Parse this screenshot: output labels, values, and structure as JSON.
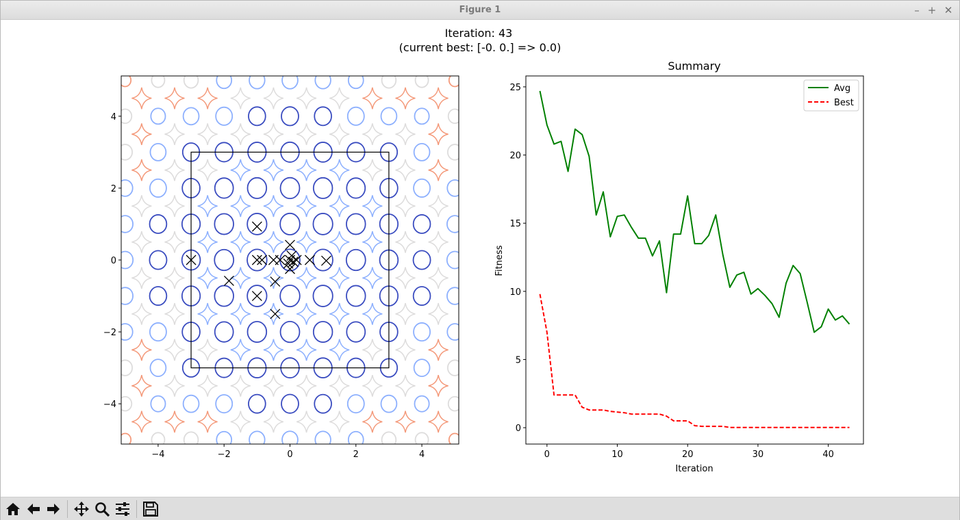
{
  "window": {
    "title": "Figure 1"
  },
  "figure": {
    "suptitle_line1": "Iteration: 43",
    "suptitle_line2": "(current best: [-0.  0.] => 0.0)"
  },
  "left_plot": {
    "x_ticks": [
      "−4",
      "−2",
      "0",
      "2",
      "4"
    ],
    "y_ticks": [
      "4",
      "2",
      "0",
      "−2",
      "−4"
    ],
    "x_tick_values": [
      -4,
      -2,
      0,
      2,
      4
    ],
    "y_tick_values": [
      4,
      2,
      0,
      -2,
      -4
    ],
    "xlim": [
      -5.12,
      5.12
    ],
    "ylim": [
      -5.12,
      5.12
    ],
    "bounds_box": [
      -3,
      3
    ],
    "points": [
      [
        -1.0,
        0.93
      ],
      [
        0.0,
        0.42
      ],
      [
        -3.0,
        0.0
      ],
      [
        -1.0,
        0.0
      ],
      [
        -0.85,
        0.0
      ],
      [
        -0.5,
        0.0
      ],
      [
        -0.3,
        0.0
      ],
      [
        0.0,
        0.0
      ],
      [
        0.05,
        0.12
      ],
      [
        -0.05,
        -0.1
      ],
      [
        0.1,
        -0.05
      ],
      [
        0.0,
        -0.25
      ],
      [
        0.2,
        0.0
      ],
      [
        0.6,
        0.0
      ],
      [
        1.1,
        -0.02
      ],
      [
        -1.85,
        -0.58
      ],
      [
        -0.45,
        -0.6
      ],
      [
        -1.0,
        -1.0
      ],
      [
        -0.45,
        -1.5
      ]
    ],
    "colors": {
      "level_dark_blue": "#3a4cc0",
      "level_blue": "#8db0fe",
      "level_gray": "#dddcdc",
      "level_orange": "#f49a7b",
      "level_red": "#b40426"
    }
  },
  "chart_data": {
    "type": "line",
    "title": "Summary",
    "xlabel": "Iteration",
    "ylabel": "Fitness",
    "xlim": [
      -3,
      45
    ],
    "ylim": [
      -1.2,
      25.8
    ],
    "x_ticks": [
      0,
      10,
      20,
      30,
      40
    ],
    "y_ticks": [
      0,
      5,
      10,
      15,
      20,
      25
    ],
    "legend": "top-right",
    "series": [
      {
        "name": "Avg",
        "color": "#008000",
        "style": "solid",
        "x": [
          -1,
          0,
          1,
          2,
          3,
          4,
          5,
          6,
          7,
          8,
          9,
          10,
          11,
          12,
          13,
          14,
          15,
          16,
          17,
          18,
          19,
          20,
          21,
          22,
          23,
          24,
          25,
          26,
          27,
          28,
          29,
          30,
          31,
          32,
          33,
          34,
          35,
          36,
          37,
          38,
          39,
          40,
          41,
          42,
          43
        ],
        "values": [
          24.7,
          22.2,
          20.8,
          21.0,
          18.8,
          21.9,
          21.5,
          19.9,
          15.6,
          17.3,
          14.0,
          15.5,
          15.6,
          14.7,
          13.9,
          13.9,
          12.6,
          13.7,
          9.9,
          14.2,
          14.2,
          17.0,
          13.5,
          13.5,
          14.1,
          15.6,
          12.7,
          10.3,
          11.2,
          11.4,
          9.8,
          10.2,
          9.7,
          9.1,
          8.1,
          10.6,
          11.9,
          11.3,
          9.2,
          7.0,
          7.4,
          8.7,
          7.9,
          8.2,
          7.6
        ]
      },
      {
        "name": "Best",
        "color": "#ff0000",
        "style": "dashed",
        "x": [
          -1,
          0,
          1,
          2,
          3,
          4,
          5,
          6,
          7,
          8,
          9,
          10,
          11,
          12,
          13,
          14,
          15,
          16,
          17,
          18,
          19,
          20,
          21,
          22,
          23,
          24,
          25,
          26,
          27,
          28,
          29,
          30,
          31,
          32,
          33,
          34,
          35,
          36,
          37,
          38,
          39,
          40,
          41,
          42,
          43
        ],
        "values": [
          9.8,
          7.0,
          2.4,
          2.4,
          2.4,
          2.4,
          1.5,
          1.3,
          1.3,
          1.3,
          1.2,
          1.15,
          1.1,
          1.0,
          1.0,
          1.0,
          1.0,
          1.0,
          0.85,
          0.5,
          0.5,
          0.5,
          0.15,
          0.1,
          0.1,
          0.1,
          0.1,
          0.02,
          0.02,
          0.02,
          0.02,
          0.02,
          0.02,
          0.02,
          0.02,
          0.02,
          0.02,
          0.02,
          0.02,
          0.02,
          0.02,
          0.02,
          0.02,
          0.02,
          0.02
        ]
      }
    ]
  },
  "toolbar": {
    "buttons": [
      "home-icon",
      "back-icon",
      "forward-icon",
      "pan-icon",
      "zoom-icon",
      "configure-subplots-icon",
      "save-icon"
    ]
  }
}
